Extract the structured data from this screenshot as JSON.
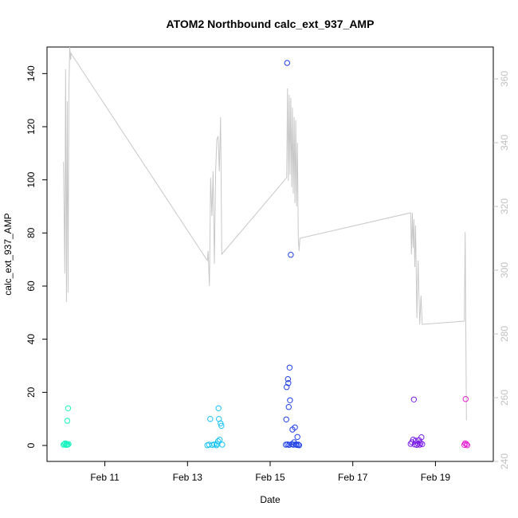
{
  "chart_data": {
    "type": "scatter",
    "title": "ATOM2 Northbound calc_ext_937_AMP",
    "xlabel": "Date",
    "ylabel": "calc_ext_937_AMP",
    "x_unit": "day of February",
    "xlim": [
      9.6,
      20.4
    ],
    "ylim": [
      -6,
      150
    ],
    "x_ticks": [
      11,
      13,
      15,
      17,
      19
    ],
    "x_tick_labels": [
      "Feb 11",
      "Feb 13",
      "Feb 15",
      "Feb 17",
      "Feb 19"
    ],
    "y_ticks": [
      0,
      20,
      40,
      60,
      80,
      100,
      120,
      140
    ],
    "y_tick_labels": [
      "0",
      "20",
      "40",
      "60",
      "80",
      "100",
      "120",
      "140"
    ],
    "secondary_ylim": [
      240,
      370
    ],
    "secondary_y_ticks": [
      240,
      260,
      280,
      300,
      320,
      340,
      360
    ],
    "secondary_y_tick_labels": [
      "240",
      "260",
      "280",
      "300",
      "320",
      "340",
      "360"
    ],
    "grid": false,
    "legend": "none",
    "line_color": "#c8c8c8",
    "scatter_series": [
      {
        "color": "#19f5c0",
        "points": [
          [
            10.0,
            0.3
          ],
          [
            10.02,
            0.5
          ],
          [
            10.04,
            0.8
          ],
          [
            10.06,
            0.2
          ],
          [
            10.07,
            0.4
          ],
          [
            10.08,
            0.6
          ],
          [
            10.09,
            9.3
          ],
          [
            10.1,
            0.3
          ],
          [
            10.11,
            14.0
          ],
          [
            10.12,
            0.5
          ]
        ]
      },
      {
        "color": "#19c4f5",
        "points": [
          [
            13.48,
            0.1
          ],
          [
            13.52,
            0.3
          ],
          [
            13.55,
            10.0
          ],
          [
            13.6,
            0.2
          ],
          [
            13.65,
            0.4
          ],
          [
            13.7,
            0.1
          ],
          [
            13.72,
            0.6
          ],
          [
            13.74,
            1.6
          ],
          [
            13.75,
            14.0
          ],
          [
            13.76,
            10.0
          ],
          [
            13.78,
            2.2
          ],
          [
            13.8,
            8.3
          ],
          [
            13.82,
            7.4
          ],
          [
            13.84,
            0.3
          ]
        ]
      },
      {
        "color": "#1f3fe6",
        "points": [
          [
            15.38,
            0.3
          ],
          [
            15.39,
            9.8
          ],
          [
            15.4,
            22.0
          ],
          [
            15.41,
            144.0
          ],
          [
            15.42,
            0.4
          ],
          [
            15.43,
            25.0
          ],
          [
            15.44,
            23.5
          ],
          [
            15.45,
            14.5
          ],
          [
            15.46,
            0.2
          ],
          [
            15.47,
            29.3
          ],
          [
            15.48,
            17.0
          ],
          [
            15.5,
            71.8
          ],
          [
            15.52,
            0.5
          ],
          [
            15.54,
            6.0
          ],
          [
            15.56,
            0.3
          ],
          [
            15.58,
            1.2
          ],
          [
            15.6,
            6.8
          ],
          [
            15.62,
            0.4
          ],
          [
            15.64,
            0.2
          ],
          [
            15.66,
            3.2
          ],
          [
            15.68,
            0.3
          ],
          [
            15.7,
            0.1
          ]
        ]
      },
      {
        "color": "#7a1fe6",
        "points": [
          [
            18.4,
            0.6
          ],
          [
            18.43,
            1.2
          ],
          [
            18.46,
            2.2
          ],
          [
            18.48,
            17.3
          ],
          [
            18.5,
            0.4
          ],
          [
            18.52,
            1.8
          ],
          [
            18.55,
            0.2
          ],
          [
            18.58,
            0.7
          ],
          [
            18.6,
            2.0
          ],
          [
            18.62,
            0.3
          ],
          [
            18.64,
            0.9
          ],
          [
            18.66,
            3.1
          ],
          [
            18.68,
            0.5
          ]
        ]
      },
      {
        "color": "#e61fd4",
        "points": [
          [
            19.7,
            0.2
          ],
          [
            19.72,
            0.8
          ],
          [
            19.73,
            17.5
          ],
          [
            19.75,
            0.5
          ],
          [
            19.77,
            0.1
          ]
        ]
      }
    ],
    "line_series": {
      "axis": "secondary",
      "x": [
        10.0,
        10.03,
        10.05,
        10.07,
        10.09,
        10.11,
        10.13,
        10.15,
        10.17,
        10.18,
        13.48,
        13.5,
        13.53,
        13.56,
        13.59,
        13.62,
        13.65,
        13.68,
        13.71,
        13.74,
        13.77,
        13.8,
        13.83,
        15.4,
        15.42,
        15.44,
        15.46,
        15.48,
        15.5,
        15.52,
        15.54,
        15.56,
        15.58,
        15.6,
        15.62,
        15.64,
        15.66,
        15.68,
        15.7,
        15.72,
        18.4,
        18.42,
        18.44,
        18.46,
        18.48,
        18.5,
        18.52,
        18.55,
        18.58,
        18.62,
        18.65,
        18.68,
        19.7,
        19.72,
        19.75
      ],
      "y": [
        334,
        299,
        363,
        290,
        353,
        293,
        357,
        370,
        366,
        368,
        303,
        306,
        295,
        329,
        317,
        331,
        302,
        331,
        341,
        342,
        331,
        348,
        305,
        329,
        357,
        328,
        355,
        330,
        354,
        326,
        351,
        324,
        348,
        321,
        347,
        320,
        340,
        310,
        306,
        310,
        318,
        305,
        318,
        307,
        316,
        301,
        314,
        285,
        303,
        283,
        292,
        283,
        284,
        312,
        253
      ]
    }
  }
}
